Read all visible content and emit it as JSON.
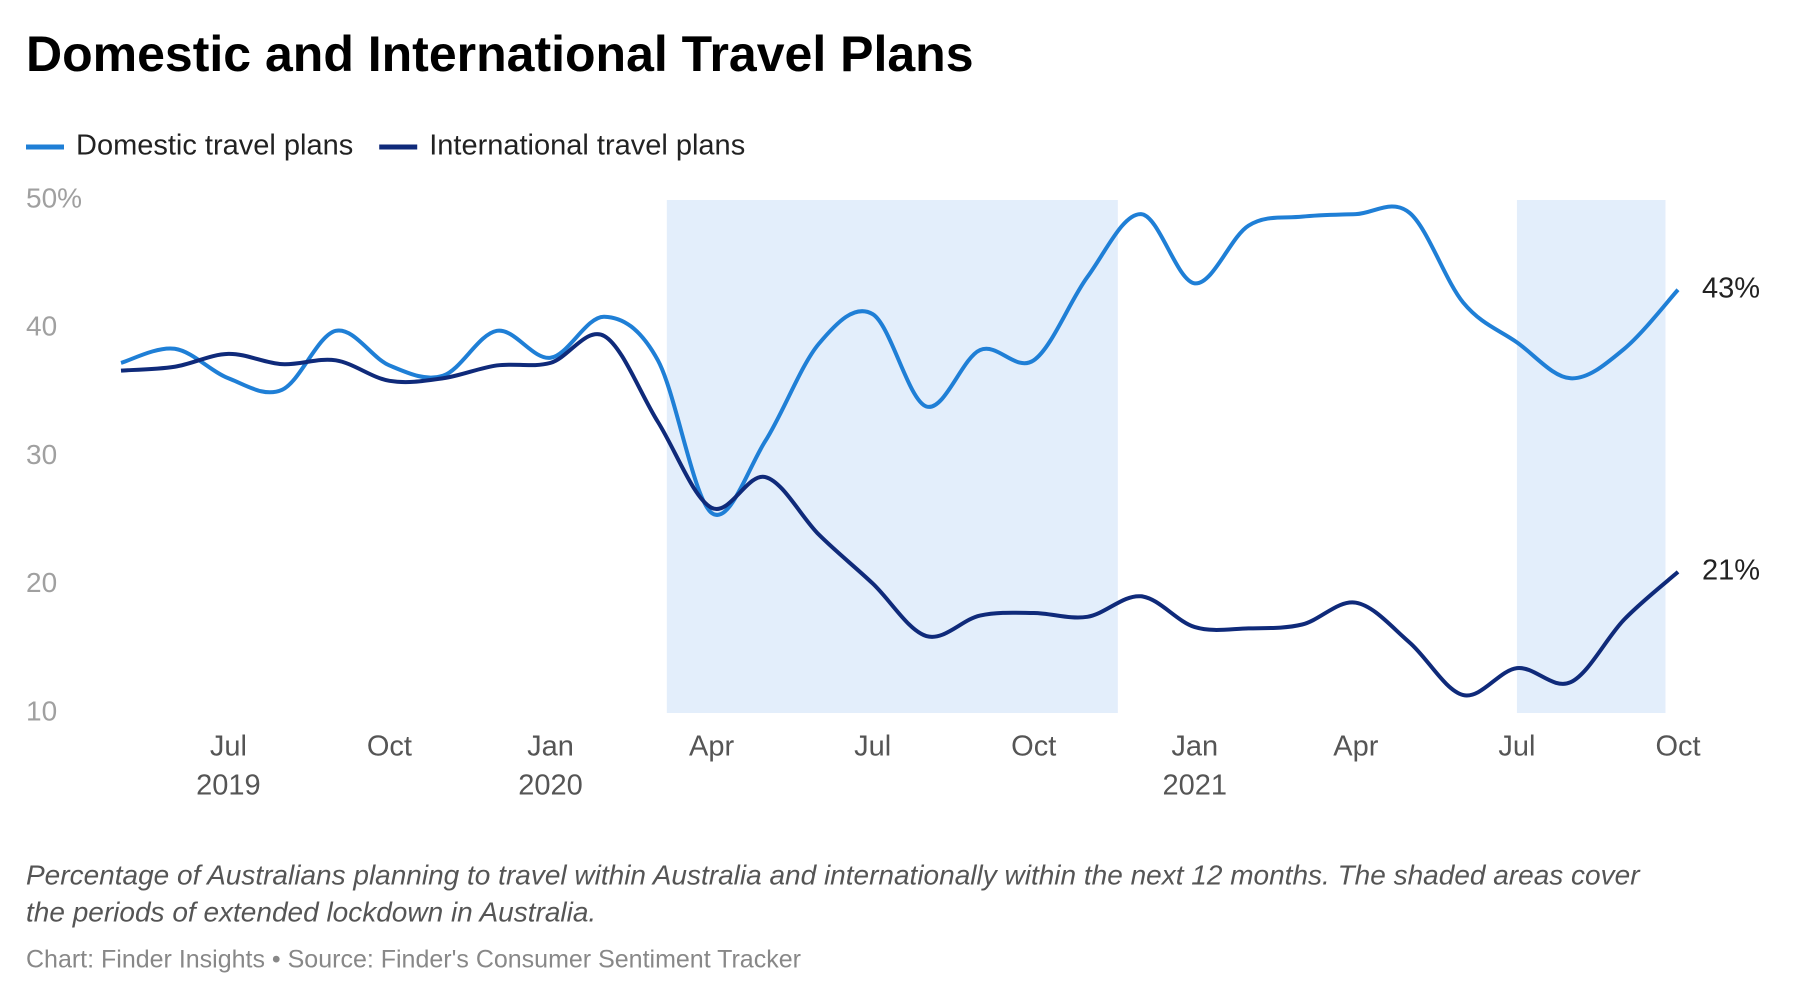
{
  "chart_data": {
    "type": "line",
    "title": "Domestic and International Travel Plans",
    "x": [
      "2019-05",
      "2019-06",
      "2019-07",
      "2019-08",
      "2019-09",
      "2019-10",
      "2019-11",
      "2019-12",
      "2020-01",
      "2020-02",
      "2020-03",
      "2020-04",
      "2020-05",
      "2020-06",
      "2020-07",
      "2020-08",
      "2020-09",
      "2020-10",
      "2020-11",
      "2020-12",
      "2021-01",
      "2021-02",
      "2021-03",
      "2021-04",
      "2021-05",
      "2021-06",
      "2021-07",
      "2021-08",
      "2021-09",
      "2021-10"
    ],
    "series": [
      {
        "name": "Domestic travel plans",
        "color": "#1f7fd6",
        "end_label": "43%",
        "values": [
          37.3,
          38.4,
          36.1,
          35.2,
          39.8,
          37.1,
          36.3,
          39.8,
          37.7,
          40.9,
          37.5,
          25.6,
          31.2,
          38.8,
          41.1,
          33.9,
          38.3,
          37.5,
          44.0,
          48.9,
          43.5,
          48.0,
          48.7,
          48.9,
          49.0,
          42.0,
          38.9,
          36.1,
          38.4,
          43
        ]
      },
      {
        "name": "International travel plans",
        "color": "#0f2a7a",
        "end_label": "21%",
        "values": [
          36.7,
          37.0,
          38.0,
          37.2,
          37.5,
          35.9,
          36.1,
          37.1,
          37.3,
          39.4,
          32.7,
          26.0,
          28.4,
          23.9,
          20.1,
          16.0,
          17.6,
          17.8,
          17.5,
          19.1,
          16.7,
          16.6,
          16.9,
          18.6,
          15.5,
          11.4,
          13.5,
          12.4,
          17.3,
          21
        ]
      }
    ],
    "ylim": [
      10,
      50
    ],
    "yticks": [
      10,
      20,
      30,
      40,
      {
        "value": 50,
        "label": "50%"
      }
    ],
    "xticks": [
      {
        "value": "2019-07",
        "label": "Jul"
      },
      {
        "value": "2019-10",
        "label": "Oct"
      },
      {
        "value": "2020-01",
        "label": "Jan"
      },
      {
        "value": "2020-04",
        "label": "Apr"
      },
      {
        "value": "2020-07",
        "label": "Jul"
      },
      {
        "value": "2020-10",
        "label": "Oct"
      },
      {
        "value": "2021-01",
        "label": "Jan"
      },
      {
        "value": "2021-04",
        "label": "Apr"
      },
      {
        "value": "2021-07",
        "label": "Jul"
      },
      {
        "value": "2021-10",
        "label": "Oct"
      }
    ],
    "xtick_years": [
      {
        "value": "2019-07",
        "label": "2019"
      },
      {
        "value": "2020-01",
        "label": "2020"
      },
      {
        "value": "2021-01",
        "label": "2021"
      }
    ],
    "shaded_periods": [
      {
        "start": "2020-03-06",
        "end": "2020-11-18"
      },
      {
        "start": "2021-07-01",
        "end": "2021-09-24"
      }
    ],
    "shade_color": "#e3eefb",
    "caption": [
      "Percentage of Australians planning to travel within Australia and internationally within the next 12 months. The shaded areas cover",
      "the periods of extended lockdown in Australia."
    ],
    "source": "Chart: Finder Insights • Source: Finder's Consumer Sentiment Tracker"
  }
}
